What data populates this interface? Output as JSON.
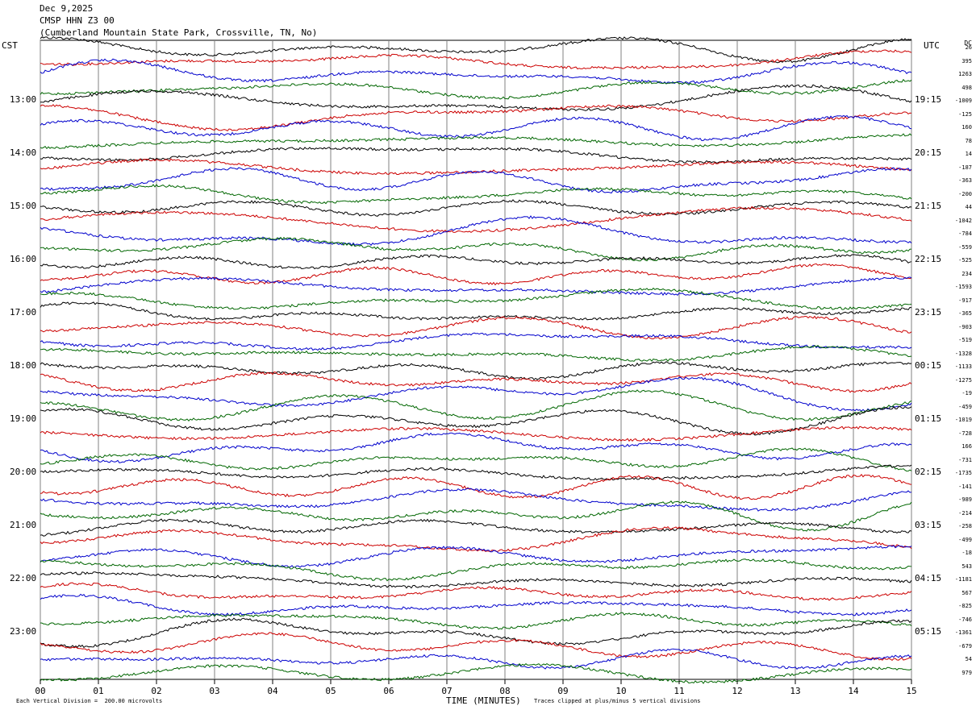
{
  "header": {
    "date": "Dec 9,2025",
    "station": "CMSP HHN Z3 00",
    "location": "(Cumberland Mountain State Park, Crossville, TN, No)"
  },
  "left_tz": "CST",
  "right_tz": "UTC",
  "dc_label": "DC",
  "footer": {
    "scale": "Each Vertical Division =  200.00 microvolts",
    "clip": "Traces clipped at plus/minus 5 vertical divisions"
  },
  "colors": {
    "black": "#000000",
    "red": "#cc0000",
    "blue": "#0000cc",
    "green": "#006600",
    "grid": "#808080"
  },
  "chart_data": {
    "type": "line",
    "title": "CMSP HHN Z3 00",
    "xlabel": "TIME (MINUTES)",
    "xlim": [
      0,
      15
    ],
    "x_ticks": [
      "00",
      "01",
      "02",
      "03",
      "04",
      "05",
      "06",
      "07",
      "08",
      "09",
      "10",
      "11",
      "12",
      "13",
      "14",
      "15"
    ],
    "trace_colors": [
      "black",
      "red",
      "blue",
      "green"
    ],
    "traces_per_hour": 4,
    "n_traces": 48,
    "left_hour_labels": [
      "13:00",
      "14:00",
      "15:00",
      "16:00",
      "17:00",
      "18:00",
      "19:00",
      "20:00",
      "21:00",
      "22:00",
      "23:00"
    ],
    "right_hour_labels": [
      "19:15",
      "20:15",
      "21:15",
      "22:15",
      "23:15",
      "00:15",
      "01:15",
      "02:15",
      "03:15",
      "04:15",
      "05:15"
    ],
    "dc_offsets": [
      "26",
      "395",
      "1263",
      "498",
      "-1009",
      "-125",
      "160",
      "78",
      "14",
      "-187",
      "-363",
      "-200",
      "44",
      "-1042",
      "-784",
      "-559",
      "-525",
      "234",
      "-1593",
      "-917",
      "-365",
      "-903",
      "-519",
      "-1328",
      "-1133",
      "-1275",
      "-19",
      "-459",
      "-1019",
      "-728",
      "166",
      "-731",
      "-1735",
      "-141",
      "-989",
      "-214",
      "-258",
      "-499",
      "-18",
      "543",
      "-1181",
      "567",
      "-825",
      "-746",
      "-1361",
      "-679",
      "54",
      "979"
    ]
  }
}
